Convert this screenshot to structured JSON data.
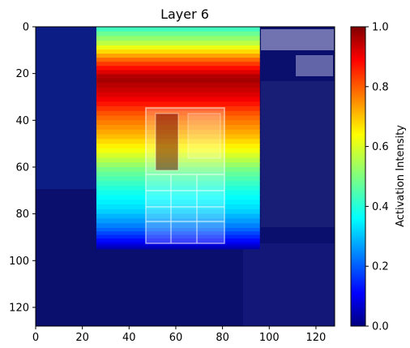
{
  "chart_data": {
    "type": "heatmap",
    "title": "Layer 6",
    "xlabel": "",
    "ylabel": "",
    "xlim": [
      0,
      128
    ],
    "ylim": [
      128,
      0
    ],
    "x_ticks": [
      0,
      20,
      40,
      60,
      80,
      100,
      120
    ],
    "y_ticks": [
      0,
      20,
      40,
      60,
      80,
      100,
      120
    ],
    "colorbar": {
      "label": "Activation Intensity",
      "colormap": "jet",
      "range": [
        0.0,
        1.0
      ],
      "ticks": [
        "0.0",
        "0.2",
        "0.4",
        "0.6",
        "0.8",
        "1.0"
      ]
    },
    "activation_region": {
      "x_range": [
        26,
        96
      ],
      "y_range": [
        0,
        95
      ],
      "row_profile": [
        {
          "y": 0,
          "value": 0.42
        },
        {
          "y": 8,
          "value": 0.58
        },
        {
          "y": 15,
          "value": 0.8
        },
        {
          "y": 22,
          "value": 0.97
        },
        {
          "y": 30,
          "value": 0.9
        },
        {
          "y": 38,
          "value": 0.78
        },
        {
          "y": 46,
          "value": 0.7
        },
        {
          "y": 54,
          "value": 0.6
        },
        {
          "y": 62,
          "value": 0.48
        },
        {
          "y": 70,
          "value": 0.4
        },
        {
          "y": 78,
          "value": 0.34
        },
        {
          "y": 86,
          "value": 0.24
        },
        {
          "y": 92,
          "value": 0.12
        },
        {
          "y": 95,
          "value": 0.04
        }
      ]
    },
    "background_value": 0.02,
    "overlay": "faded building photograph with window panels"
  },
  "colors": {
    "jet_stops": [
      "#00007f",
      "#0000ff",
      "#007fff",
      "#00ffff",
      "#7fff7f",
      "#ffff00",
      "#ff7f00",
      "#ff0000",
      "#7f0000"
    ]
  }
}
